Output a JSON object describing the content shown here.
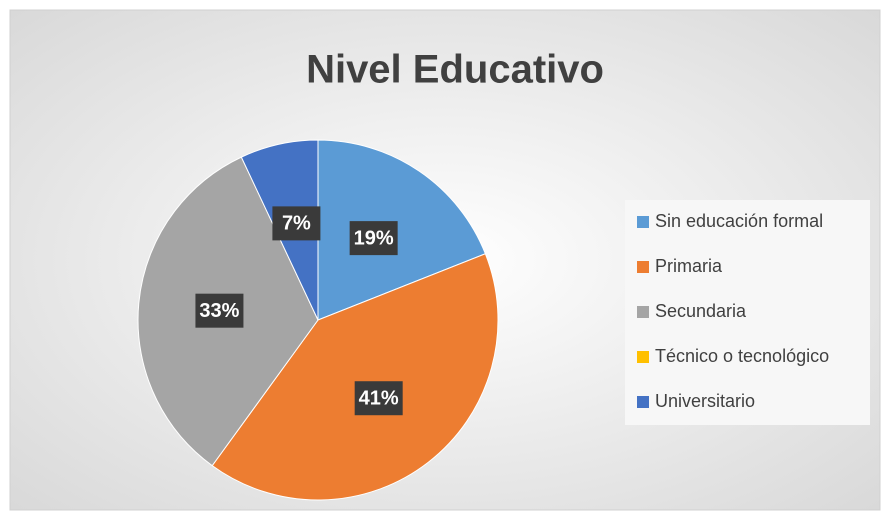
{
  "chart_data": {
    "type": "pie",
    "title": "Nivel Educativo",
    "categories": [
      "Sin educación formal",
      "Primaria",
      "Secundaria",
      "Técnico o tecnológico",
      "Universitario"
    ],
    "values": [
      19,
      41,
      33,
      0,
      7
    ],
    "value_labels": [
      "19%",
      "41%",
      "33%",
      null,
      "7%"
    ],
    "colors": [
      "#5b9bd5",
      "#ed7d31",
      "#a5a5a5",
      "#ffc000",
      "#4472c4"
    ],
    "legend": "right"
  }
}
